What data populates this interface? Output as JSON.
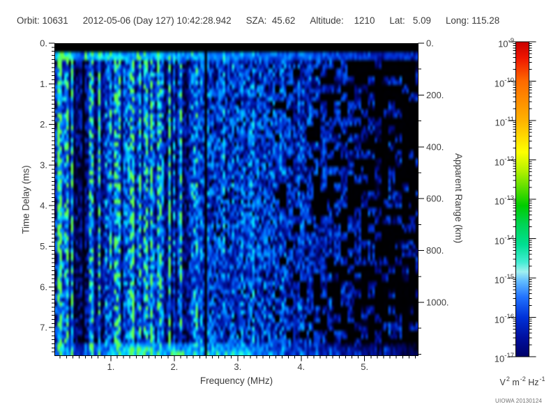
{
  "header": {
    "fields": [
      {
        "text": "Orbit: 10631"
      },
      {
        "text": "2012-05-06 (Day 127) 10:42:28.942"
      },
      {
        "text": "SZA:  45.62"
      },
      {
        "text": "Altitude:    1210"
      },
      {
        "text": "Lat:   5.09"
      },
      {
        "text": "Long: 115.28"
      }
    ]
  },
  "footer": {
    "credit": "UIOWA 20130124"
  },
  "chart_data": {
    "type": "heatmap",
    "kind": "radar sounder ionogram spectrogram",
    "xlabel": "Frequency (MHz)",
    "ylabel": "Time Delay (ms)",
    "y2label": "Apparent Range (km)",
    "x_axis": {
      "range_mhz": [
        0.11,
        5.85
      ],
      "major_ticks": [
        1,
        2,
        3,
        4,
        5
      ],
      "major_labels": [
        "1.",
        "2.",
        "3.",
        "4.",
        "5."
      ],
      "minor_step_mhz": 0.1
    },
    "y_axis": {
      "range_ms": [
        0,
        7.7
      ],
      "major_ticks": [
        0,
        1,
        2,
        3,
        4,
        5,
        6,
        7
      ],
      "major_labels": [
        "0.",
        "1.",
        "2.",
        "3.",
        "4.",
        "5.",
        "6.",
        "7."
      ],
      "minor_step_ms": 0.1
    },
    "y2_axis": {
      "range_km": [
        0,
        1207
      ],
      "major_ticks": [
        0,
        200,
        400,
        600,
        800,
        1000
      ],
      "major_labels": [
        "0.",
        "200.",
        "400.",
        "600.",
        "800.",
        "1000."
      ],
      "minor_step_km": 100
    },
    "colorbar": {
      "scale": "log",
      "value_range": [
        "1e-9",
        "1e-17"
      ],
      "tick_exponents": [
        -9,
        -10,
        -11,
        -12,
        -13,
        -14,
        -15,
        -16,
        -17
      ],
      "unit_parts": [
        [
          "t",
          "V"
        ],
        [
          "s",
          "2"
        ],
        [
          "t",
          " m"
        ],
        [
          "s",
          "-2"
        ],
        [
          "t",
          " Hz"
        ],
        [
          "s",
          "-1"
        ]
      ],
      "gradient": [
        [
          0.0,
          "#c80000"
        ],
        [
          0.05,
          "#ee1500"
        ],
        [
          0.125,
          "#ff6a00"
        ],
        [
          0.2,
          "#ff9500"
        ],
        [
          0.25,
          "#ffb200"
        ],
        [
          0.31,
          "#ffe000"
        ],
        [
          0.35,
          "#fdff00"
        ],
        [
          0.41,
          "#b4f000"
        ],
        [
          0.47,
          "#52dc00"
        ],
        [
          0.52,
          "#00cc00"
        ],
        [
          0.58,
          "#00d455"
        ],
        [
          0.645,
          "#00df93"
        ],
        [
          0.7,
          "#43ecd3"
        ],
        [
          0.73,
          "#a0f0f0"
        ],
        [
          0.76,
          "#62bdff"
        ],
        [
          0.81,
          "#2273ff"
        ],
        [
          0.875,
          "#0031d8"
        ],
        [
          0.94,
          "#000f9e"
        ],
        [
          1.0,
          "#000068"
        ]
      ]
    },
    "value_colormap": [
      [
        0.0,
        "#000000"
      ],
      [
        0.07,
        "#000016"
      ],
      [
        0.16,
        "#00067a"
      ],
      [
        0.28,
        "#0024c0"
      ],
      [
        0.42,
        "#0051ea"
      ],
      [
        0.56,
        "#0084ff"
      ],
      [
        0.68,
        "#00b2ff"
      ],
      [
        0.8,
        "#00dcff"
      ],
      [
        0.9,
        "#2effd2"
      ],
      [
        0.97,
        "#4dff6e"
      ],
      [
        1.0,
        "#62ff4d"
      ]
    ],
    "spectrogram": {
      "seed": 20130124,
      "cols": 160,
      "rows": 76,
      "description": "Blue/cyan noise ionogram: black transmit-blank band at top (0-0.17 ms); bright cyan band near 0.25 ms fading toward high frequency; strong vertical plasma-line striping below 2.3 MHz with bright lines near 0.22, 0.6, 0.86 and 1.42 MHz; dark stripe zone 0.4-0.6 MHz; black data-gap column near 2.5 MHz; diffuse blue noise 2.5-4 MHz; sparse dark-blue blobs on black above 4 MHz; bright green-cyan diffuse echo along the bottom edge between about 1 and 3.2 MHz.",
      "base_profile": [
        [
          0.11,
          0.8
        ],
        [
          0.35,
          0.75
        ],
        [
          0.42,
          0.42
        ],
        [
          0.55,
          0.36
        ],
        [
          0.62,
          0.55
        ],
        [
          0.85,
          0.55
        ],
        [
          1.0,
          0.6
        ],
        [
          1.4,
          0.65
        ],
        [
          2.0,
          0.62
        ],
        [
          2.4,
          0.58
        ],
        [
          2.55,
          0.52
        ],
        [
          3.2,
          0.48
        ],
        [
          3.8,
          0.42
        ],
        [
          4.3,
          0.34
        ],
        [
          4.8,
          0.3
        ],
        [
          5.85,
          0.27
        ]
      ],
      "bright_columns": [
        [
          0.22,
          0.02,
          1.25
        ],
        [
          0.25,
          0.015,
          1.3
        ],
        [
          0.6,
          0.014,
          1.55
        ],
        [
          0.86,
          0.014,
          1.5
        ],
        [
          1.42,
          0.02,
          2.1
        ],
        [
          3.43,
          0.015,
          1.25
        ]
      ],
      "dark_columns": [
        [
          2.49,
          0.024,
          0.05
        ],
        [
          0.5,
          0.08,
          0.55
        ],
        [
          5.26,
          0.06,
          0.55
        ]
      ],
      "black_band_ms": [
        0,
        0.17
      ],
      "bright_band_ms": [
        0.2,
        0.33
      ],
      "bottom_echo_ms": [
        7.35,
        7.7
      ],
      "bottom_echo_profile": [
        [
          0.11,
          0.5
        ],
        [
          0.8,
          0.6
        ],
        [
          1.1,
          0.95
        ],
        [
          1.5,
          1.05
        ],
        [
          2.2,
          0.95
        ],
        [
          2.6,
          0.95
        ],
        [
          3.2,
          0.85
        ],
        [
          3.5,
          0.5
        ],
        [
          4.2,
          0.3
        ],
        [
          5.85,
          0.15
        ]
      ]
    }
  }
}
